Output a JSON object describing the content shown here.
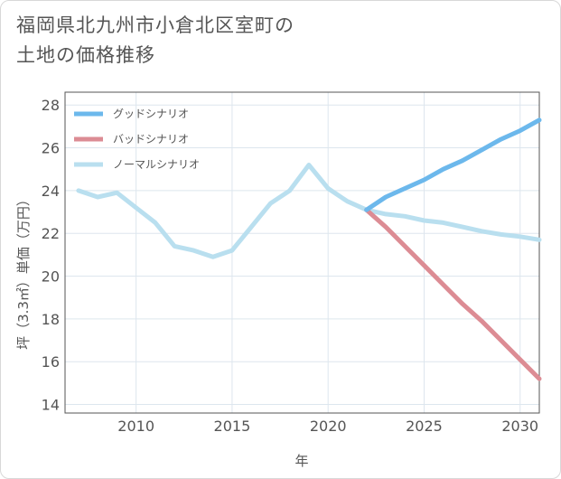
{
  "title": {
    "line1": "福岡県北九州市小倉北区室町の",
    "line2": "土地の価格推移"
  },
  "chart_data": {
    "type": "line",
    "xlabel": "年",
    "ylabel": "坪（3.3㎡）単価（万円）",
    "xlim": [
      2006.3,
      2031
    ],
    "ylim": [
      13.6,
      28.6
    ],
    "xticks": [
      2010,
      2015,
      2020,
      2025,
      2030
    ],
    "yticks": [
      14,
      16,
      18,
      20,
      22,
      24,
      26,
      28
    ],
    "grid": true,
    "legend_position": "top-left",
    "series": [
      {
        "name": "グッドシナリオ",
        "color": "#6cb8ec",
        "x": [
          2022,
          2023,
          2024,
          2025,
          2026,
          2027,
          2028,
          2029,
          2030,
          2031
        ],
        "y": [
          23.1,
          23.7,
          24.1,
          24.5,
          25.0,
          25.4,
          25.9,
          26.4,
          26.8,
          27.3
        ]
      },
      {
        "name": "バッドシナリオ",
        "color": "#dc8c94",
        "x": [
          2022,
          2023,
          2024,
          2025,
          2026,
          2027,
          2028,
          2029,
          2030,
          2031
        ],
        "y": [
          23.1,
          22.3,
          21.4,
          20.5,
          19.6,
          18.7,
          17.9,
          17.0,
          16.1,
          15.2
        ]
      },
      {
        "name": "ノーマルシナリオ",
        "color": "#b9dfef",
        "x": [
          2007,
          2008,
          2009,
          2010,
          2011,
          2012,
          2013,
          2014,
          2015,
          2016,
          2017,
          2018,
          2019,
          2020,
          2021,
          2022,
          2023,
          2024,
          2025,
          2026,
          2027,
          2028,
          2029,
          2030,
          2031
        ],
        "y": [
          24.0,
          23.7,
          23.9,
          23.2,
          22.5,
          21.4,
          21.2,
          20.9,
          21.2,
          22.3,
          23.4,
          24.0,
          25.2,
          24.1,
          23.5,
          23.1,
          22.9,
          22.8,
          22.6,
          22.5,
          22.3,
          22.1,
          21.95,
          21.85,
          21.7
        ]
      }
    ]
  }
}
